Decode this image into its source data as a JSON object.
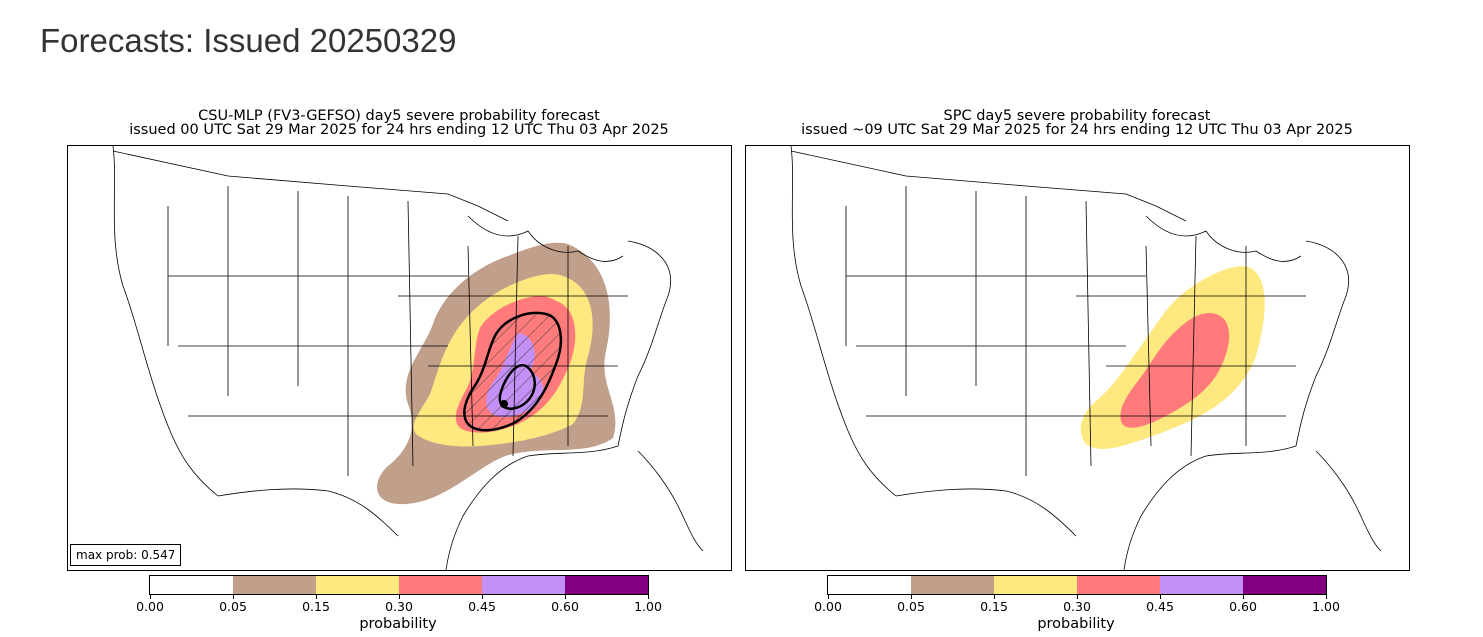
{
  "page": {
    "title": "Forecasts: Issued 20250329"
  },
  "panels": [
    {
      "title_line1": "CSU-MLP (FV3-GEFSO) day5 severe probability forecast",
      "title_line2": "issued 00 UTC Sat 29 Mar 2025 for 24 hrs ending 12 UTC Thu 03 Apr 2025",
      "max_prob_label": "max prob: 0.547"
    },
    {
      "title_line1": "SPC day5 severe probability forecast",
      "title_line2": "issued ~09 UTC Sat 29 Mar 2025 for 24 hrs ending 12 UTC Thu 03 Apr 2025"
    }
  ],
  "colorbar": {
    "label": "probability",
    "ticks": [
      "0.00",
      "0.05",
      "0.15",
      "0.30",
      "0.45",
      "0.60",
      "1.00"
    ],
    "colors": [
      "#ffffff",
      "#c09f8b",
      "#fde97f",
      "#ff7b7b",
      "#c390f5",
      "#800080"
    ]
  },
  "map_colors": {
    "p05": "#c09f8b",
    "p15": "#fde97f",
    "p30": "#ff7b7b",
    "p45": "#c390f5",
    "border": "#000000"
  }
}
